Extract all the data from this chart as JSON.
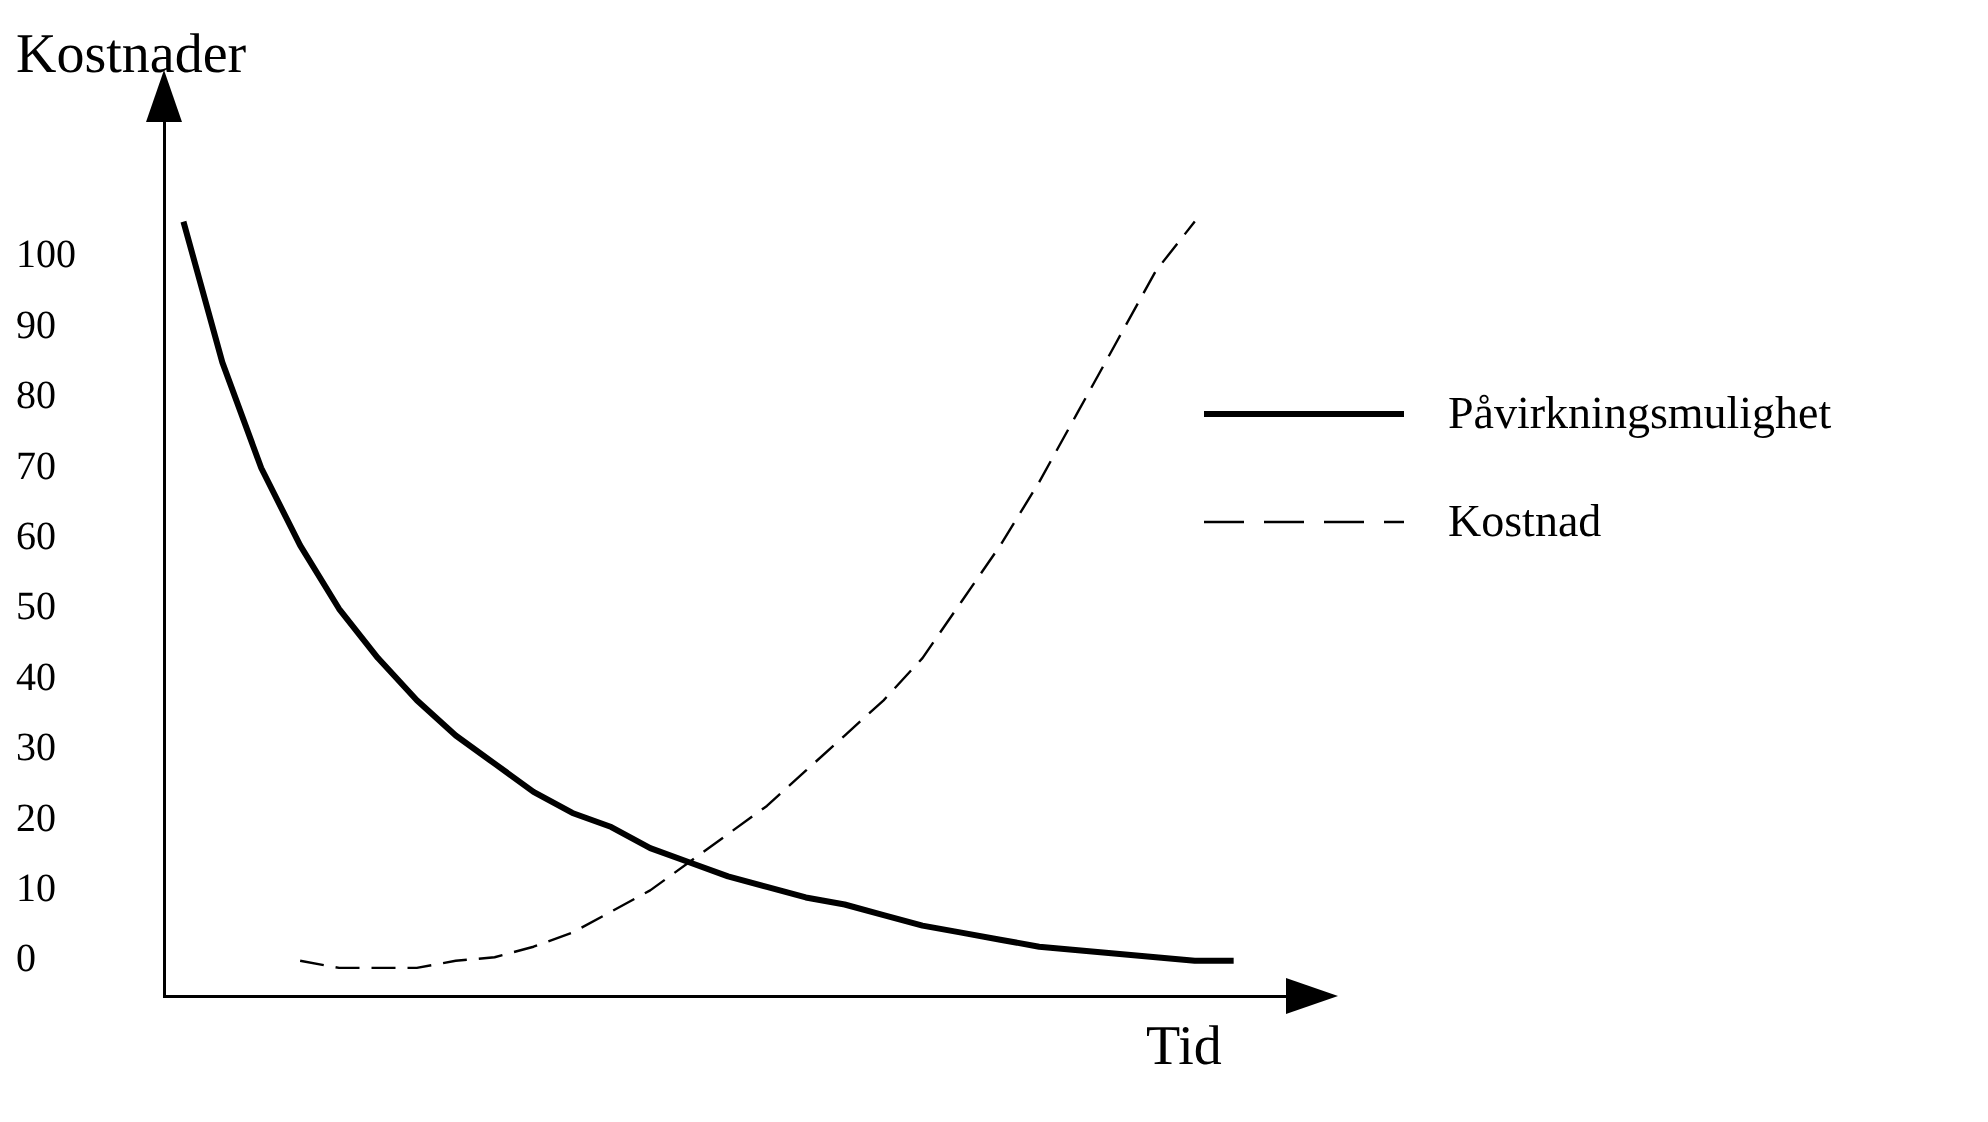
{
  "chart_data": {
    "type": "line",
    "ylabel": "Kostnader",
    "xlabel": "Tid",
    "categories": [
      null,
      null,
      null,
      null,
      null,
      null,
      null,
      null,
      null,
      null,
      null,
      null,
      null,
      null,
      null,
      null,
      null,
      null,
      null,
      null,
      null,
      null,
      null,
      null,
      null,
      null,
      null,
      null,
      null
    ],
    "series": [
      {
        "name": "Påvirkningsmulighet",
        "color": "#000000",
        "line_style": "solid",
        "values": [
          105,
          85,
          70,
          59,
          50,
          43,
          37,
          32,
          28,
          24,
          21,
          19,
          16,
          14,
          12,
          10.5,
          9,
          8,
          6.5,
          5,
          4,
          3,
          2,
          1.5,
          1,
          0.5,
          0,
          0,
          null
        ]
      },
      {
        "name": "Kostnad",
        "color": "#000000",
        "line_style": "dashed",
        "values": [
          null,
          null,
          null,
          0,
          -1,
          -1,
          -1,
          0,
          0.5,
          2,
          4,
          7,
          10,
          14,
          18,
          22,
          27,
          32,
          37,
          43,
          51,
          59,
          68,
          78,
          88,
          98,
          105,
          null,
          null
        ]
      }
    ],
    "ylim": [
      -5,
      120
    ],
    "yticks": [
      0,
      10,
      20,
      30,
      40,
      50,
      60,
      70,
      80,
      90,
      100
    ],
    "grid": false,
    "legend": "right",
    "tick_labels": "y",
    "marker": "none"
  }
}
